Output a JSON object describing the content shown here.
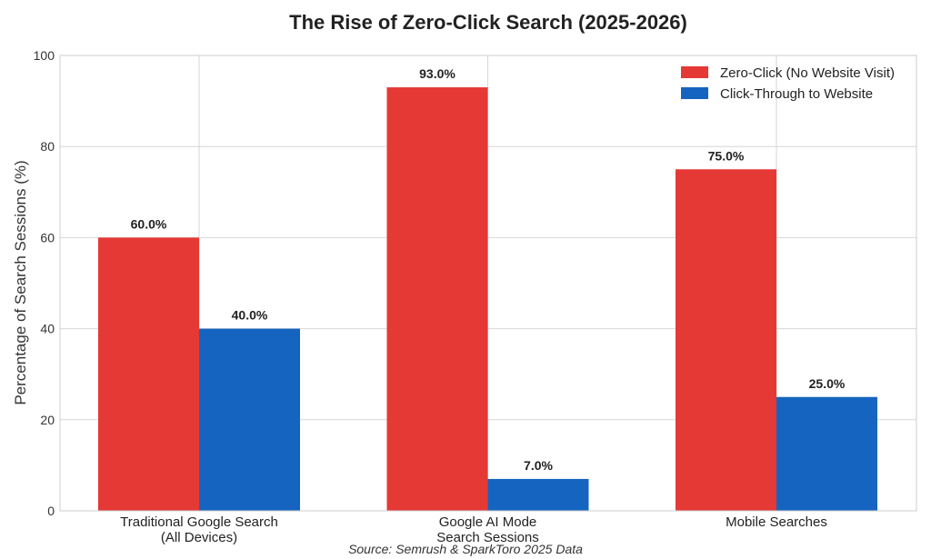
{
  "chart_data": {
    "type": "bar",
    "title": "The Rise of Zero-Click Search (2025-2026)",
    "xlabel": "",
    "ylabel": "Percentage of Search Sessions (%)",
    "ylim": [
      0,
      100
    ],
    "yticks": [
      0,
      20,
      40,
      60,
      80,
      100
    ],
    "categories": [
      [
        "Traditional Google Search",
        "(All Devices)"
      ],
      [
        "Google AI Mode",
        "Search Sessions"
      ],
      [
        "Mobile Searches"
      ]
    ],
    "series": [
      {
        "name": "Zero-Click (No Website Visit)",
        "color": "#e53935",
        "values": [
          60.0,
          93.0,
          75.0
        ],
        "labels": [
          "60.0%",
          "93.0%",
          "75.0%"
        ]
      },
      {
        "name": "Click-Through to Website",
        "color": "#1565c0",
        "values": [
          40.0,
          7.0,
          25.0
        ],
        "labels": [
          "40.0%",
          "7.0%",
          "25.0%"
        ]
      }
    ],
    "grid": true,
    "legend": "top-right",
    "source": "Source: Semrush & SparkToro 2025 Data"
  }
}
